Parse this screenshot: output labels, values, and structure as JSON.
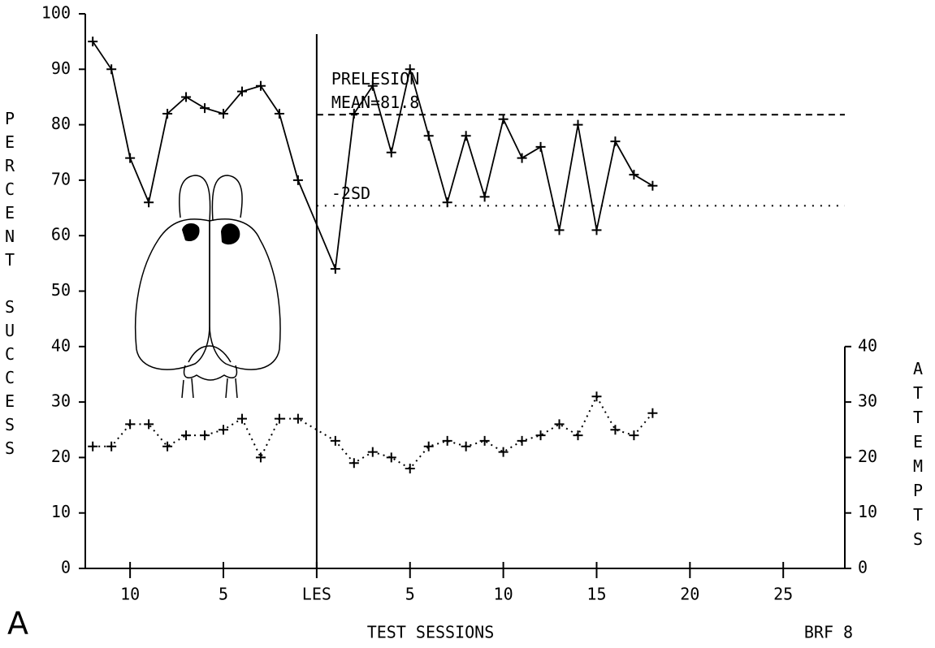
{
  "chart_data": {
    "type": "line",
    "x_label": "TEST SESSIONS",
    "y_label": "PERCENT SUCCESS",
    "y2_label": "ATTEMPTS",
    "panel_label": "A",
    "subject_label": "BRF 8",
    "xlim": [
      -12.4,
      28.3
    ],
    "xticks": [
      {
        "value": -10,
        "label": "10"
      },
      {
        "value": -5,
        "label": "5"
      },
      {
        "value": 0,
        "label": "LES"
      },
      5,
      10,
      15,
      20,
      25
    ],
    "ylim": [
      0,
      100
    ],
    "yticks": [
      0,
      10,
      20,
      30,
      40,
      50,
      60,
      70,
      80,
      90,
      100
    ],
    "y2lim": [
      0,
      40
    ],
    "y2ticks": [
      0,
      10,
      20,
      30,
      40
    ],
    "x": [
      -12,
      -11,
      -10,
      -9,
      -8,
      -7,
      -6,
      -5,
      -4,
      -3,
      -2,
      -1,
      1,
      2,
      3,
      4,
      5,
      6,
      7,
      8,
      9,
      10,
      11,
      12,
      13,
      14,
      15,
      16,
      17,
      18
    ],
    "series": [
      {
        "line_style": "solid",
        "color": "#000000",
        "values": [
          95,
          90,
          74,
          66,
          82,
          85,
          83,
          82,
          86,
          87,
          82,
          70,
          54,
          82,
          87,
          75,
          90,
          78,
          66,
          78,
          67,
          81,
          74,
          76,
          61,
          80,
          61,
          77,
          71,
          69
        ]
      },
      {
        "line_style": "dotted",
        "color": "#000000",
        "axis": "y2",
        "values": [
          22,
          22,
          26,
          26,
          22,
          24,
          24,
          25,
          27,
          20,
          27,
          27,
          23,
          19,
          21,
          20,
          18,
          22,
          23,
          22,
          23,
          21,
          23,
          24,
          26,
          24,
          31,
          25,
          24,
          28
        ]
      }
    ],
    "reference_lines": [
      {
        "label": [
          "PRELESION",
          "MEAN=81.8"
        ],
        "value": 81.8,
        "style": "dashed"
      },
      {
        "label": [
          "-2SD"
        ],
        "value": 65.4,
        "style": "dotted"
      }
    ]
  }
}
